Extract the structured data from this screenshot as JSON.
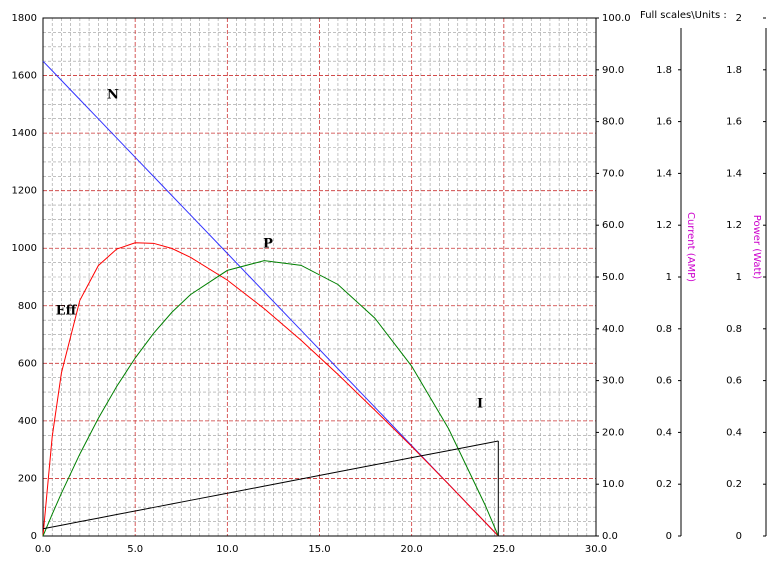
{
  "chart_data": {
    "type": "line",
    "units_heading": "Full scales\\Units :",
    "x": [
      0,
      0.5,
      1,
      2,
      3,
      4,
      5,
      6,
      7,
      8,
      10,
      12,
      14,
      16,
      18,
      20,
      22,
      24,
      24.7
    ],
    "xlim": [
      0,
      30
    ],
    "xticks": [
      {
        "value": 0,
        "label": "0.0"
      },
      {
        "value": 5,
        "label": "5.0"
      },
      {
        "value": 10,
        "label": "10.0"
      },
      {
        "value": 15,
        "label": "15.0"
      },
      {
        "value": 20,
        "label": "20.0"
      },
      {
        "value": 25,
        "label": "25.0"
      },
      {
        "value": 30,
        "label": "30.0"
      }
    ],
    "ylim": [
      0,
      1800
    ],
    "yticks": [
      0,
      200,
      400,
      600,
      800,
      1000,
      1200,
      1400,
      1600,
      1800
    ],
    "y2lim": [
      0,
      100
    ],
    "y2ticks": [
      {
        "value": 0,
        "label": "0.0"
      },
      {
        "value": 10,
        "label": "10.0"
      },
      {
        "value": 20,
        "label": "20.0"
      },
      {
        "value": 30,
        "label": "30.0"
      },
      {
        "value": 40,
        "label": "40.0"
      },
      {
        "value": 50,
        "label": "50.0"
      },
      {
        "value": 60,
        "label": "60.0"
      },
      {
        "value": 70,
        "label": "70.0"
      },
      {
        "value": 80,
        "label": "80.0"
      },
      {
        "value": 90,
        "label": "90.0"
      },
      {
        "value": 100,
        "label": "100.0"
      }
    ],
    "current_axis": {
      "label": "Current (AMP)",
      "lim": [
        0,
        2
      ],
      "ticks": [
        0,
        0.2,
        0.4,
        0.6,
        0.8,
        1,
        1.2,
        1.4,
        1.6,
        1.8
      ]
    },
    "power_axis": {
      "label": "Power (Watt)",
      "lim": [
        0,
        2
      ],
      "ticks": [
        0,
        0.2,
        0.4,
        0.6,
        0.8,
        1,
        1.2,
        1.4,
        1.6,
        1.8,
        2
      ]
    },
    "grid": true,
    "series": [
      {
        "name": "N",
        "color": "#3333ff",
        "axis": "y",
        "values": [
          1650,
          1616.6,
          1583.2,
          1516.4,
          1449.6,
          1382.8,
          1316,
          1249.2,
          1182.4,
          1115.6,
          982,
          848.4,
          714.8,
          581.2,
          447.6,
          314,
          180.4,
          46.8,
          0
        ]
      },
      {
        "name": "Eff",
        "color": "#ff0000",
        "axis": "y2",
        "values": [
          0,
          19.2,
          31.5,
          45.5,
          52.2,
          55.4,
          56.6,
          56.5,
          55.5,
          53.8,
          49.4,
          43.9,
          37.8,
          31.2,
          24.3,
          17.3,
          10.0,
          2.6,
          0
        ]
      },
      {
        "name": "P",
        "color": "#008000",
        "axis": "power",
        "values": [
          0,
          0.0844,
          0.1653,
          0.3167,
          0.4541,
          0.5776,
          0.6872,
          0.7827,
          0.8644,
          0.932,
          1.0255,
          1.0632,
          1.045,
          0.9711,
          0.8414,
          0.6558,
          0.4145,
          0.1173,
          0
        ]
      },
      {
        "name": "I",
        "color": "#000000",
        "axis": "current",
        "values": [
          0.028,
          0.0349,
          0.0417,
          0.0554,
          0.0692,
          0.0829,
          0.0966,
          0.1103,
          0.124,
          0.1378,
          0.1652,
          0.1926,
          0.2201,
          0.2475,
          0.275,
          0.3024,
          0.3298,
          0.3573,
          0.3669
        ]
      }
    ]
  }
}
